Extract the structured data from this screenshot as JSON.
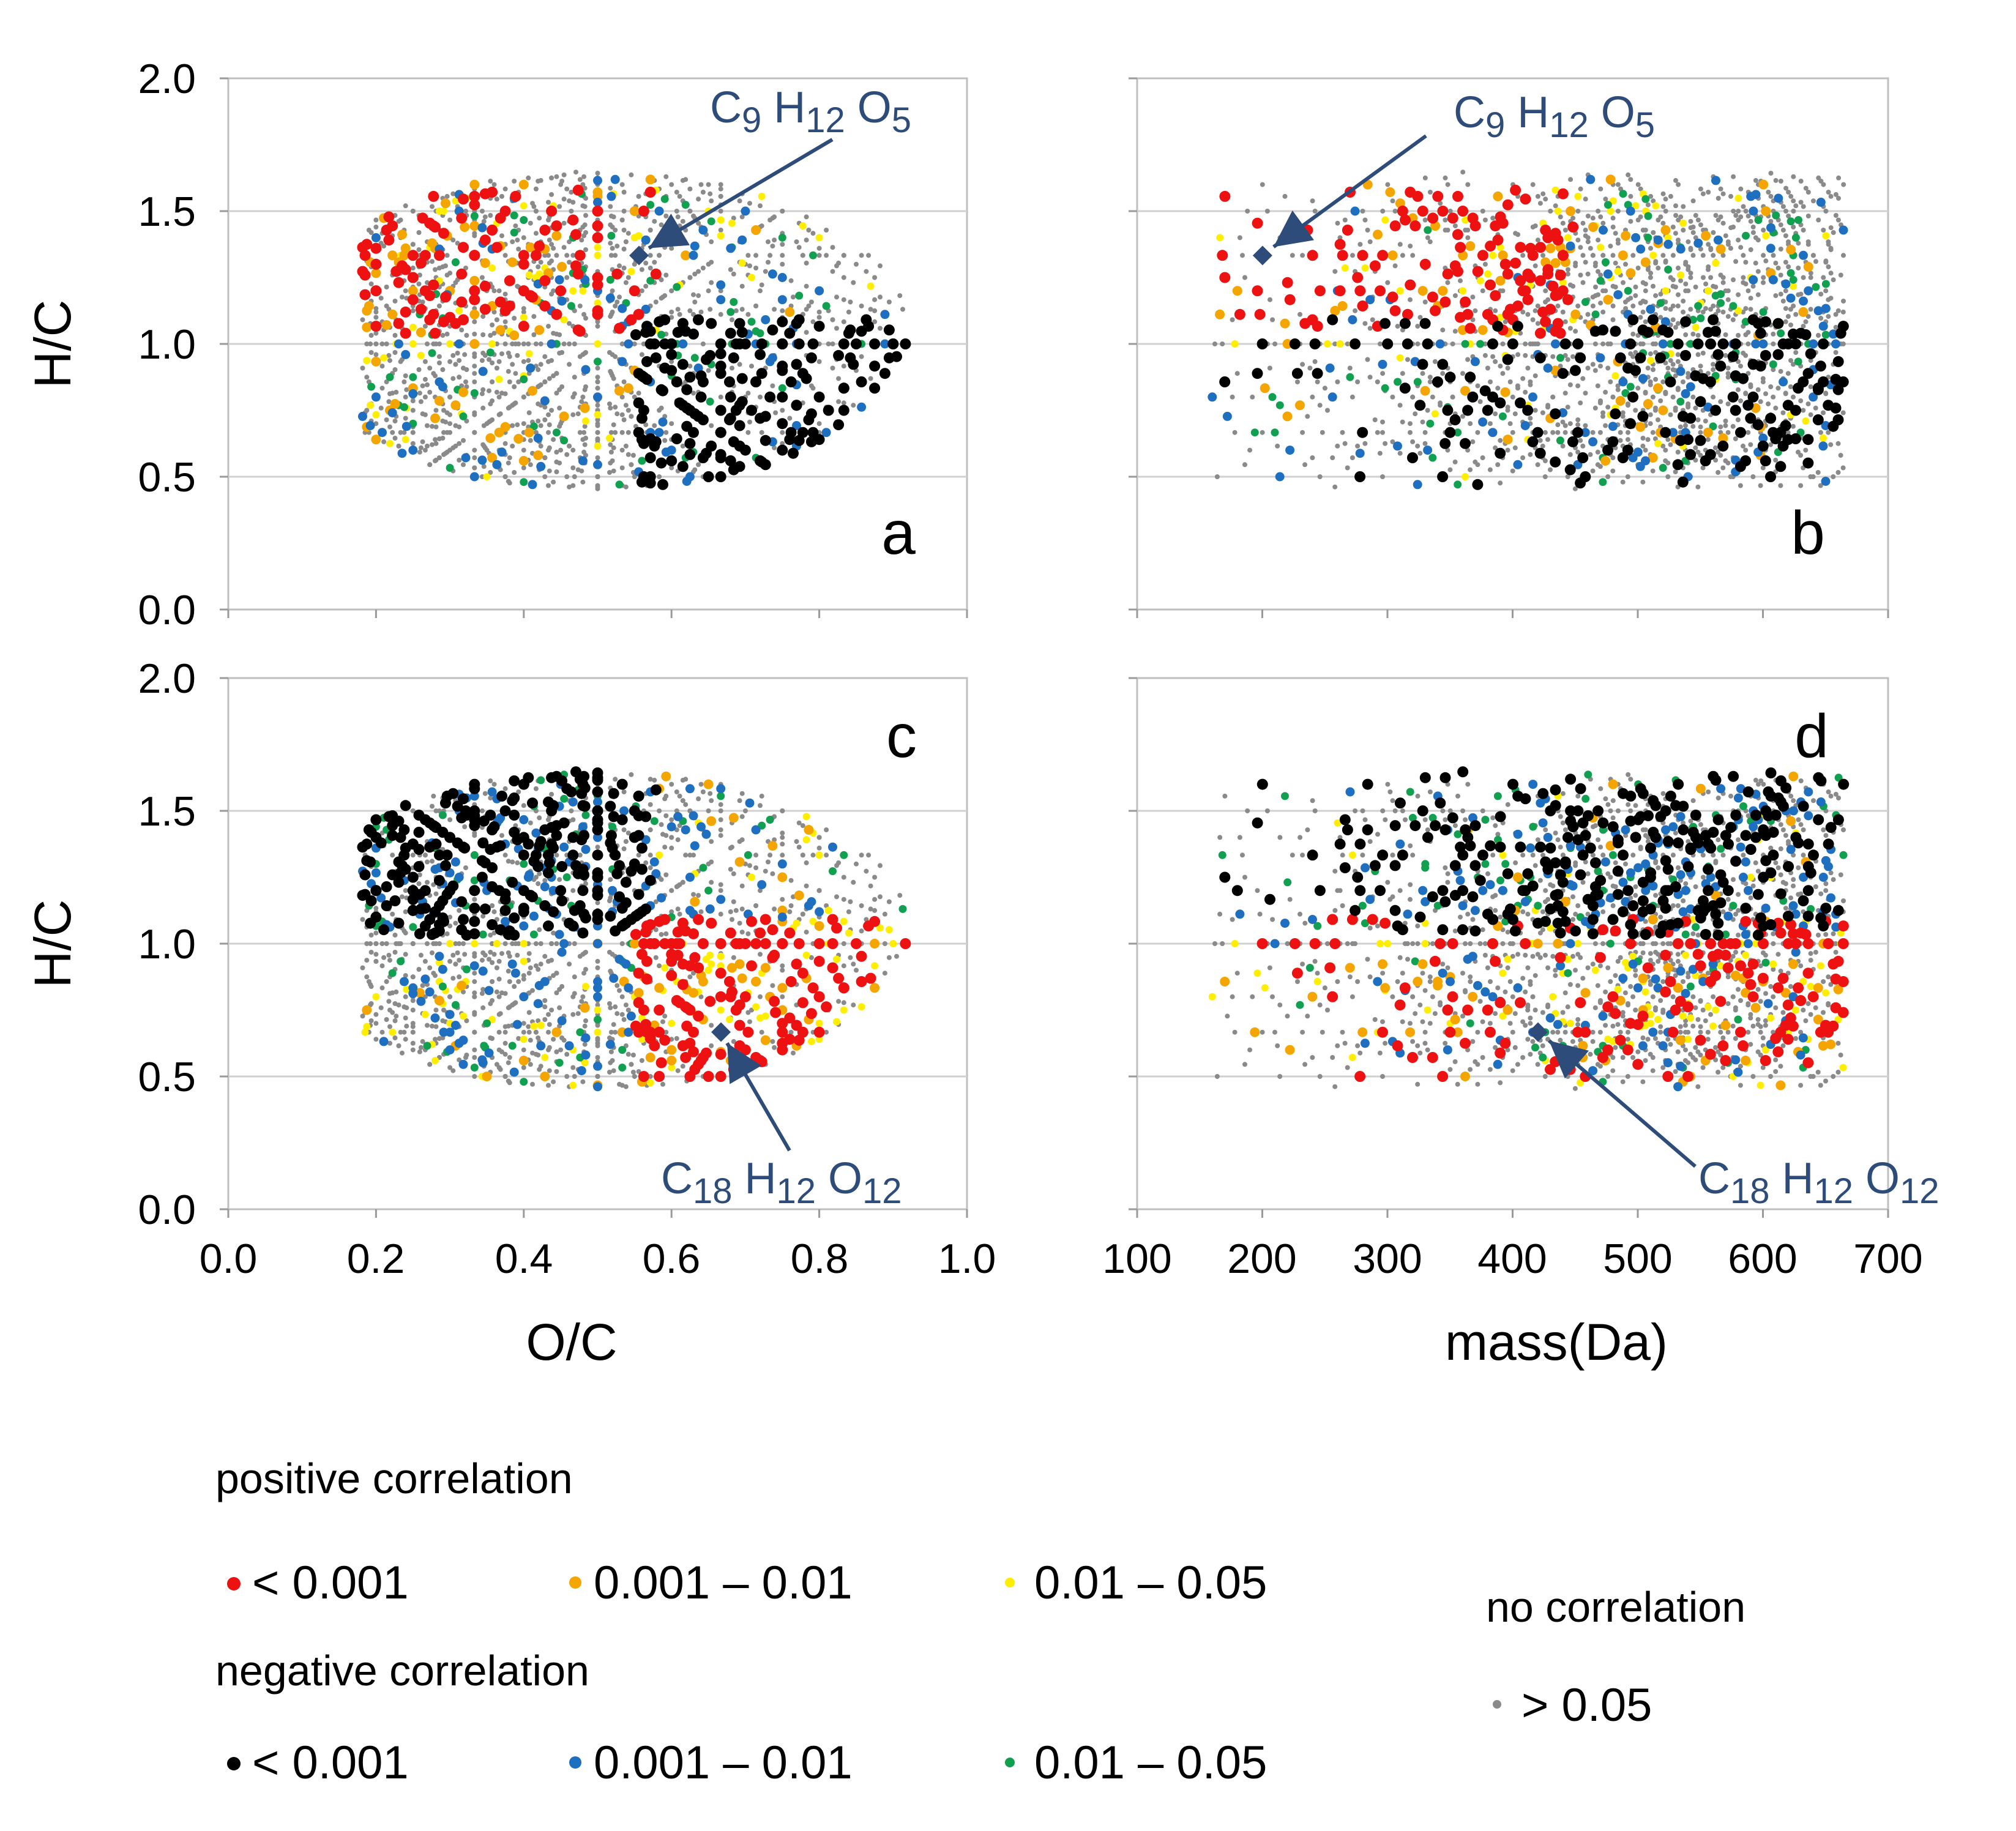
{
  "colors": {
    "pos_lt_0001": "#ee1111",
    "pos_0001_001": "#f5a500",
    "pos_001_005": "#ffee00",
    "neg_lt_0001": "#000000",
    "neg_0001_001": "#1e6fc0",
    "neg_001_005": "#10a050",
    "no_corr": "#8a8a8a",
    "annotation": "#2e4c7a",
    "grid": "#d0d0d0"
  },
  "chart_data": [
    {
      "panel": "a",
      "type": "scatter",
      "xlabel": "",
      "ylabel": "H/C",
      "xlim": [
        0.0,
        1.0
      ],
      "ylim": [
        0.0,
        2.0
      ],
      "yticks": [
        "0.0",
        "0.5",
        "1.0",
        "1.5",
        "2.0"
      ],
      "xticks": [],
      "grid": "horizontal",
      "annotation": {
        "label": [
          "C",
          "9",
          " H",
          "12",
          " O",
          "5"
        ],
        "point": [
          0.556,
          1.333
        ]
      },
      "series_groups": {
        "pos_lt_0001": "upper-left O/C 0.25-0.6, H/C 1.0-1.7",
        "neg_lt_0001": "right O/C 0.55-0.9, H/C 0.6-1.1"
      }
    },
    {
      "panel": "b",
      "type": "scatter",
      "xlabel": "",
      "ylabel": "",
      "xlim": [
        100,
        700
      ],
      "ylim": [
        0.0,
        2.0
      ],
      "grid": "horizontal",
      "annotation": {
        "label": [
          "C",
          "9",
          " H",
          "12",
          " O",
          "5"
        ],
        "point": [
          200.2,
          1.333
        ]
      }
    },
    {
      "panel": "c",
      "type": "scatter",
      "xlabel": "O/C",
      "ylabel": "H/C",
      "xlim": [
        0.0,
        1.0
      ],
      "ylim": [
        0.0,
        2.0
      ],
      "xticks": [
        "0.0",
        "0.2",
        "0.4",
        "0.6",
        "0.8",
        "1.0"
      ],
      "yticks": [
        "0.0",
        "0.5",
        "1.0",
        "1.5",
        "2.0"
      ],
      "grid": "horizontal",
      "annotation": {
        "label": [
          "C",
          "18",
          " H",
          "12",
          " O",
          "12"
        ],
        "point": [
          0.667,
          0.667
        ]
      }
    },
    {
      "panel": "d",
      "type": "scatter",
      "xlabel": "mass(Da)",
      "ylabel": "",
      "xlim": [
        100,
        700
      ],
      "ylim": [
        0.0,
        2.0
      ],
      "xticks": [
        "100",
        "200",
        "300",
        "400",
        "500",
        "600",
        "700"
      ],
      "grid": "horizontal",
      "annotation": {
        "label": [
          "C",
          "18",
          " H",
          "12",
          " O",
          "12"
        ],
        "point": [
          420.3,
          0.667
        ]
      }
    }
  ],
  "panels": {
    "a": {
      "letter": "a"
    },
    "b": {
      "letter": "b"
    },
    "c": {
      "letter": "c"
    },
    "d": {
      "letter": "d"
    }
  },
  "axes": {
    "ylabel_top": "H/C",
    "ylabel_bottom": "H/C",
    "xlabel_left": "O/C",
    "xlabel_right": "mass(Da)",
    "yticks": [
      "0.0",
      "0.5",
      "1.0",
      "1.5",
      "2.0"
    ],
    "xticks_oc": [
      "0.0",
      "0.2",
      "0.4",
      "0.6",
      "0.8",
      "1.0"
    ],
    "xticks_mass": [
      "100",
      "200",
      "300",
      "400",
      "500",
      "600",
      "700"
    ]
  },
  "annotations": {
    "c9": {
      "C": "C",
      "c": "9",
      "H": " H",
      "h": "12",
      "O": " O",
      "o": "5"
    },
    "c18": {
      "C": "C",
      "c": "18",
      "H": " H",
      "h": "12",
      "O": " O",
      "o": "12"
    }
  },
  "legend": {
    "positive_title": "positive correlation",
    "negative_title": "negative correlation",
    "no_title": "no correlation",
    "pos_items": [
      "< 0.001",
      "0.001 – 0.01",
      "0.01 – 0.05"
    ],
    "neg_items": [
      "< 0.001",
      "0.001 – 0.01",
      "0.01 – 0.05"
    ],
    "no_item": "> 0.05"
  }
}
